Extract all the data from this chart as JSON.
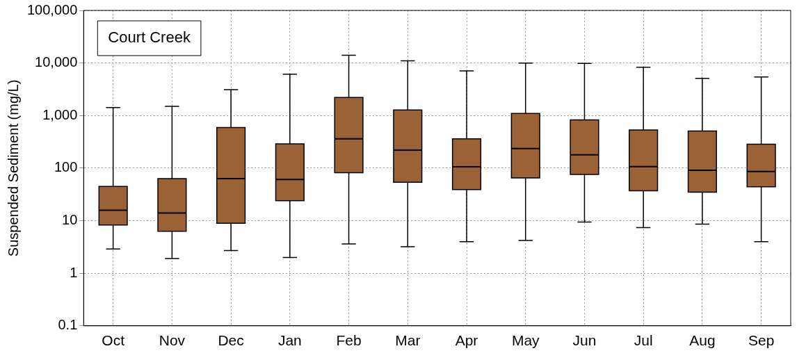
{
  "chart_data": {
    "type": "box",
    "ylabel": "Suspended Sediment (mg/L)",
    "annotations": [
      "Court Creek"
    ],
    "categories": [
      "Oct",
      "Nov",
      "Dec",
      "Jan",
      "Feb",
      "Mar",
      "Apr",
      "May",
      "Jun",
      "Jul",
      "Aug",
      "Sep"
    ],
    "color": "#9a6235",
    "log": true,
    "grid": true,
    "ylim": [
      0.1,
      100000
    ],
    "yticks": [
      0.1,
      1,
      10,
      100,
      {
        "value": 1000,
        "label": "1,000"
      },
      {
        "value": 10000,
        "label": "10,000"
      },
      {
        "value": 100000,
        "label": "100,000"
      }
    ],
    "boxes": [
      {
        "low": 2.9,
        "q1": 8.3,
        "median": 15.8,
        "q3": 45,
        "high": 1420
      },
      {
        "low": 1.9,
        "q1": 6.3,
        "median": 14,
        "q3": 63,
        "high": 1500
      },
      {
        "low": 2.7,
        "q1": 8.9,
        "median": 63,
        "q3": 590,
        "high": 3100
      },
      {
        "low": 2,
        "q1": 24,
        "median": 61,
        "q3": 290,
        "high": 6100
      },
      {
        "low": 3.6,
        "q1": 82,
        "median": 360,
        "q3": 2200,
        "high": 14000
      },
      {
        "low": 3.2,
        "q1": 54,
        "median": 220,
        "q3": 1280,
        "high": 11000
      },
      {
        "low": 4,
        "q1": 39,
        "median": 106,
        "q3": 360,
        "high": 7100
      },
      {
        "low": 4.2,
        "q1": 65,
        "median": 236,
        "q3": 1100,
        "high": 10000
      },
      {
        "low": 9.4,
        "q1": 76,
        "median": 179,
        "q3": 830,
        "high": 9800
      },
      {
        "low": 7.4,
        "q1": 37,
        "median": 107,
        "q3": 530,
        "high": 8300
      },
      {
        "low": 8.6,
        "q1": 35,
        "median": 91,
        "q3": 510,
        "high": 5100
      },
      {
        "low": 4,
        "q1": 44,
        "median": 86,
        "q3": 284,
        "high": 5400
      }
    ]
  }
}
